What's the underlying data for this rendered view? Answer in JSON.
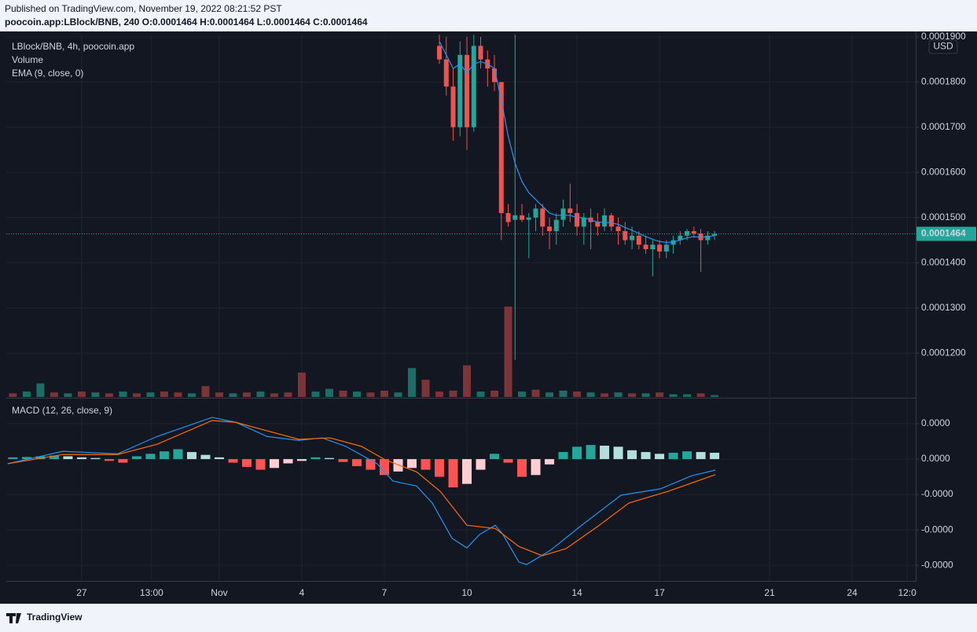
{
  "header": {
    "published": "Published on TradingView.com, November 19, 2022 08:21:52 PST",
    "symbol_line": "poocoin.app:LBlock/BNB, 240 O:0.0001464 H:0.0001464 L:0.0001464 C:0.0001464"
  },
  "footer": {
    "brand": "TradingView"
  },
  "chart_data": [
    {
      "type": "candlestick",
      "title": "LBlock/BNB, 4h, poocoin.app",
      "currency": "USD",
      "up_color": "#26a69a",
      "down_color": "#ef5350",
      "x": [
        9.0,
        9.25,
        9.5,
        9.75,
        10.0,
        10.25,
        10.5,
        10.75,
        11.0,
        11.25,
        11.5,
        11.75,
        12.0,
        12.25,
        12.5,
        12.75,
        13.0,
        13.25,
        13.5,
        13.75,
        14.0,
        14.25,
        14.5,
        14.75,
        15.0,
        15.25,
        15.5,
        15.75,
        16.0,
        16.25,
        16.5,
        16.75,
        17.0,
        17.25,
        17.5,
        17.75,
        18.0,
        18.25,
        18.5,
        18.75,
        19.0
      ],
      "open": [
        0.000188,
        0.000185,
        0.000179,
        0.00017,
        0.000186,
        0.00017,
        0.000188,
        0.000185,
        0.000183,
        0.00018,
        0.000151,
        0.0001495,
        0.0001505,
        0.0001495,
        0.00015,
        0.000152,
        0.000148,
        0.000147,
        0.0001495,
        0.000152,
        0.000151,
        0.000148,
        0.00015,
        0.000149,
        0.000148,
        0.0001505,
        0.000148,
        0.000147,
        0.000145,
        0.000146,
        0.000144,
        0.000143,
        0.000144,
        0.0001425,
        0.000144,
        0.000145,
        0.000146,
        0.000147,
        0.0001465,
        0.000145,
        0.000146
      ],
      "high": [
        0.000191,
        0.00019,
        0.000183,
        0.000189,
        0.00019,
        0.000191,
        0.00019,
        0.000187,
        0.000186,
        0.00018,
        0.000153,
        0.0001905,
        0.000153,
        0.000151,
        0.000153,
        0.000153,
        0.00015,
        0.000151,
        0.000154,
        0.0001575,
        0.000153,
        0.000151,
        0.000152,
        0.000151,
        0.000152,
        0.000151,
        0.00015,
        0.000149,
        0.000148,
        0.000147,
        0.000146,
        0.000145,
        0.000145,
        0.000145,
        0.000146,
        0.000147,
        0.0001475,
        0.000148,
        0.0001475,
        0.000147,
        0.000147
      ],
      "low": [
        0.000184,
        0.000177,
        0.000167,
        0.000168,
        0.000165,
        0.000169,
        0.000183,
        0.000179,
        0.000178,
        0.000145,
        0.000148,
        0.0001185,
        0.000149,
        0.000141,
        0.000147,
        0.000146,
        0.000143,
        0.000144,
        0.000148,
        0.000149,
        0.000146,
        0.000144,
        0.000143,
        0.000146,
        0.000147,
        0.000147,
        0.000144,
        0.000144,
        0.000143,
        0.000143,
        0.000142,
        0.000137,
        0.000141,
        0.000141,
        0.000142,
        0.000144,
        0.000145,
        0.0001455,
        0.000138,
        0.000144,
        0.000145
      ],
      "close": [
        0.000185,
        0.000179,
        0.00017,
        0.000186,
        0.00017,
        0.000188,
        0.000185,
        0.000183,
        0.00018,
        0.000151,
        0.000149,
        0.0001505,
        0.0001495,
        0.00015,
        0.000152,
        0.000148,
        0.000147,
        0.0001495,
        0.000152,
        0.000151,
        0.000148,
        0.00015,
        0.000149,
        0.000148,
        0.0001505,
        0.000148,
        0.000147,
        0.000145,
        0.000146,
        0.000144,
        0.000143,
        0.000144,
        0.0001425,
        0.000144,
        0.000145,
        0.000146,
        0.000147,
        0.0001465,
        0.000145,
        0.000146,
        0.0001464
      ],
      "series": [
        {
          "name": "EMA (9, close, 0)",
          "color": "#2196f3",
          "values": [
            0.000189,
            0.000186,
            0.000183,
            0.000184,
            0.000182,
            0.000184,
            0.0001845,
            0.000184,
            0.000183,
            0.000176,
            0.000168,
            0.000162,
            0.000158,
            0.0001555,
            0.000154,
            0.0001525,
            0.000151,
            0.0001505,
            0.0001505,
            0.0001505,
            0.00015,
            0.00015,
            0.0001495,
            0.000149,
            0.000149,
            0.0001488,
            0.0001485,
            0.0001478,
            0.0001472,
            0.0001465,
            0.0001458,
            0.0001452,
            0.0001447,
            0.0001445,
            0.0001446,
            0.000145,
            0.0001455,
            0.0001458,
            0.0001456,
            0.0001458,
            0.000146
          ]
        }
      ],
      "volume": {
        "name": "Volume",
        "lim": [
          0,
          100
        ],
        "x": [
          -6.5,
          -6,
          -5.5,
          -5,
          -4.5,
          -4,
          -3.5,
          -3,
          -2.5,
          -2,
          -1.5,
          -1,
          -0.5,
          0,
          0.5,
          1,
          1.5,
          2,
          2.5,
          3,
          3.5,
          4,
          4.5,
          5,
          5.5,
          6,
          6.5,
          7,
          7.5,
          8,
          8.5,
          9,
          9.5,
          10,
          10.5,
          11,
          11.5,
          12,
          12.5,
          13,
          13.5,
          14,
          14.5,
          15,
          15.5,
          16,
          16.5,
          17,
          17.5,
          18,
          18.5,
          19
        ],
        "values": [
          4,
          6,
          15,
          5,
          4,
          6,
          5,
          4,
          6,
          4,
          5,
          6,
          5,
          4,
          12,
          5,
          4,
          5,
          6,
          4,
          5,
          27,
          6,
          9,
          7,
          6,
          5,
          7,
          5,
          32,
          19,
          6,
          7,
          35,
          6,
          7,
          100,
          6,
          8,
          5,
          7,
          6,
          5,
          4,
          5,
          4,
          4,
          5,
          3,
          3,
          4,
          2
        ],
        "colors": [
          "#7b3437",
          "#1f6b66",
          "#1f6b66",
          "#7b3437",
          "#1f6b66",
          "#7b3437",
          "#1f6b66",
          "#7b3437",
          "#1f6b66",
          "#7b3437",
          "#1f6b66",
          "#7b3437",
          "#7b3437",
          "#1f6b66",
          "#7b3437",
          "#7b3437",
          "#1f6b66",
          "#7b3437",
          "#1f6b66",
          "#7b3437",
          "#7b3437",
          "#7b3437",
          "#1f6b66",
          "#1f6b66",
          "#7b3437",
          "#1f6b66",
          "#7b3437",
          "#7b3437",
          "#1f6b66",
          "#1f6b66",
          "#7b3437",
          "#7b3437",
          "#7b3437",
          "#7b3437",
          "#1f6b66",
          "#7b3437",
          "#7b3437",
          "#1f6b66",
          "#7b3437",
          "#1f6b66",
          "#1f6b66",
          "#7b3437",
          "#1f6b66",
          "#7b3437",
          "#1f6b66",
          "#7b3437",
          "#1f6b66",
          "#7b3437",
          "#1f6b66",
          "#1f6b66",
          "#7b3437",
          "#1f6b66"
        ]
      },
      "last_price": {
        "value": 0.0001464,
        "label": "0.0001464"
      },
      "xlim": [
        -6.74,
        26.31
      ],
      "xticks": [
        {
          "value": -4,
          "label": "27"
        },
        {
          "value": -1.46,
          "label": "13:00"
        },
        {
          "value": 1,
          "label": "Nov"
        },
        4,
        7,
        10,
        14,
        17,
        21,
        24,
        {
          "value": 26,
          "label": "12:0"
        }
      ],
      "ylim": [
        0.0001103,
        0.0001905
      ],
      "yticks": [
        {
          "value": 0.00012,
          "label": "0.0001200"
        },
        {
          "value": 0.00013,
          "label": "0.0001300"
        },
        {
          "value": 0.00014,
          "label": "0.0001400"
        },
        {
          "value": 0.00015,
          "label": "0.0001500"
        },
        {
          "value": 0.00016,
          "label": "0.0001600"
        },
        {
          "value": 0.00017,
          "label": "0.0001700"
        },
        {
          "value": 0.00018,
          "label": "0.0001800"
        },
        {
          "value": 0.00019,
          "label": "0.0001900"
        }
      ],
      "grid": true
    },
    {
      "type": "macd",
      "title": "MACD (12, 26, close, 9)",
      "series": [
        {
          "color": "#2196f3",
          "x": [
            -6.69,
            -4.69,
            -2.69,
            -1.26,
            0.74,
            1.6,
            2.74,
            3.89,
            4.74,
            5.6,
            6.74,
            7.31,
            8.17,
            8.74,
            9.46,
            10,
            10.46,
            11.03,
            11.31,
            11.89,
            12.17,
            13.03,
            14.17,
            15.6,
            17.03,
            18.17,
            19.03
          ],
          "values": [
            -1.3e-07,
            2.2e-07,
            1.5e-07,
            6.4e-07,
            1.18e-06,
            1.04e-06,
            6.4e-07,
            5.3e-07,
            6e-07,
            3.6e-07,
            -1.3e-07,
            -6.2e-07,
            -7.6e-07,
            -1.24e-06,
            -2.24e-06,
            -2.51e-06,
            -2.13e-06,
            -1.87e-06,
            -2.13e-06,
            -2.91e-06,
            -2.98e-06,
            -2.58e-06,
            -1.87e-06,
            -1.02e-06,
            -8.4e-07,
            -4.7e-07,
            -3.1e-07
          ]
        },
        {
          "color": "#ff6d00",
          "x": [
            -6.69,
            -4.69,
            -2.69,
            -1.26,
            0.74,
            1.6,
            2.74,
            3.89,
            5.03,
            6.17,
            7.03,
            8.17,
            9.03,
            10,
            11.03,
            11.89,
            12.74,
            13.6,
            14.74,
            15.89,
            17.31,
            19.03
          ],
          "values": [
            -1.3e-07,
            1.3e-07,
            1.3e-07,
            4.2e-07,
            1.09e-06,
            1.04e-06,
            8e-07,
            5.6e-07,
            6e-07,
            3.6e-07,
            -2e-08,
            -3.6e-07,
            -9.1e-07,
            -1.87e-06,
            -1.96e-06,
            -2.47e-06,
            -2.73e-06,
            -2.53e-06,
            -1.91e-06,
            -1.24e-06,
            -9.1e-07,
            -4.4e-07
          ]
        }
      ],
      "histogram": {
        "colors": [
          "#26a69a",
          "#b2dfdb",
          "#ff5252",
          "#ffcdd2"
        ],
        "x": [
          -6.5,
          -6,
          -5.5,
          -5,
          -4.5,
          -4,
          -3.5,
          -3,
          -2.5,
          -2,
          -1.5,
          -1,
          -0.5,
          0,
          0.5,
          1,
          1.5,
          2,
          2.5,
          3,
          3.5,
          4,
          4.5,
          5,
          5.5,
          6,
          6.5,
          7,
          7.5,
          8,
          8.5,
          9,
          9.5,
          10,
          10.5,
          11,
          11.5,
          12,
          12.5,
          13,
          13.5,
          14,
          14.5,
          15,
          15.5,
          16,
          16.5,
          17,
          17.5,
          18,
          18.5,
          19
        ],
        "values": [
          5e-08,
          6e-08,
          8e-08,
          1e-07,
          8e-08,
          5e-08,
          3e-08,
          -5e-08,
          -1e-07,
          8e-08,
          1.5e-07,
          2.2e-07,
          2.8e-07,
          2e-07,
          1.2e-07,
          5e-08,
          -1e-07,
          -2.2e-07,
          -3e-07,
          -2.5e-07,
          -1.2e-07,
          -5e-08,
          5e-08,
          3e-08,
          -8e-08,
          -2e-07,
          -3e-07,
          -4.5e-07,
          -3.5e-07,
          -2.5e-07,
          -3e-07,
          -5e-07,
          -8e-07,
          -7e-07,
          -3e-07,
          1.5e-07,
          -1e-07,
          -5e-07,
          -4.5e-07,
          -1.5e-07,
          2e-07,
          3.5e-07,
          4e-07,
          3.8e-07,
          3.5e-07,
          2.5e-07,
          2e-07,
          1.5e-07,
          1.8e-07,
          2.2e-07,
          2e-07,
          1.8e-07
        ]
      },
      "ylim": [
        -3.42e-06,
        1.69e-06
      ],
      "yticks": [
        {
          "value": 1e-06,
          "label": "0.0000"
        },
        {
          "value": 0,
          "label": "0.0000"
        },
        {
          "value": -1e-06,
          "label": "-0.0000"
        },
        {
          "value": -2e-06,
          "label": "-0.0000"
        },
        {
          "value": -3e-06,
          "label": "-0.0000"
        }
      ],
      "grid": true
    }
  ]
}
